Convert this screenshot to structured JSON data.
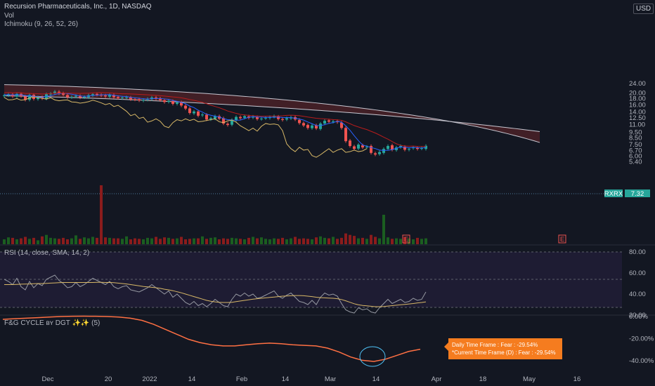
{
  "header": {
    "title": "Recursion Pharmaceuticals, Inc., 1D, NASDAQ",
    "volume_label": "Vol",
    "ichimoku_label": "Ichimoku (9, 26, 52, 26)",
    "currency": "USD"
  },
  "rsi_panel": {
    "label": "RSI (14, close, SMA, 14, 2)"
  },
  "fg_panel": {
    "label": "F&G CYCLE ʙʏ DGT ✨✨ (5)"
  },
  "tooltip": {
    "line1": "Daily Time Frame : Fear : -29.54%",
    "line2": "*Current Time Frame (D) : Fear : -29.54%"
  },
  "price_tags": {
    "symbol": "RXRX",
    "last": "7.32"
  },
  "earnings_marker": "E",
  "colors": {
    "up": "#26a69a",
    "down": "#ef5350",
    "volume_up": "#1b5e20",
    "volume_down": "#8b1c1c",
    "cloud": "#4a2127",
    "kumo_line": "#c7c7d1",
    "tenkan": "#2962ff",
    "kijun": "#b71c1c",
    "chikou": "#d8b867",
    "rsi": "#9598a1",
    "rsi_ma": "#d8b867",
    "fg_line": "#ff7043"
  },
  "chart_data": [
    {
      "type": "candlestick",
      "title": "Recursion Pharmaceuticals, Inc., 1D, NASDAQ",
      "x_ticks": [
        "Dec",
        "20",
        "2022",
        "14",
        "Feb",
        "14",
        "Mar",
        "14",
        "Apr",
        "18",
        "May",
        "16"
      ],
      "y_ticks": [
        "24.00",
        "20.00",
        "18.00",
        "16.00",
        "14.00",
        "12.50",
        "11.00",
        "9.50",
        "8.50",
        "7.50",
        "6.70",
        "6.00",
        "5.40"
      ],
      "close": [
        19.2,
        19.4,
        18.8,
        19.7,
        18.9,
        17.6,
        19.3,
        17.9,
        18.5,
        18.1,
        19.6,
        19.8,
        20.6,
        19.9,
        19.4,
        18.5,
        18.6,
        19.0,
        18.4,
        18.6,
        19.2,
        19.6,
        19.4,
        19.1,
        18.8,
        19.3,
        18.5,
        18.2,
        18.4,
        18.5,
        17.8,
        17.7,
        17.4,
        17.6,
        17.9,
        18.4,
        18.0,
        17.5,
        16.9,
        17.3,
        16.3,
        16.7,
        15.8,
        14.9,
        13.7,
        14.1,
        13.0,
        13.3,
        12.1,
        12.4,
        12.9,
        12.3,
        11.2,
        10.9,
        12.0,
        12.7,
        12.4,
        12.9,
        12.5,
        12.8,
        12.2,
        12.3,
        12.5,
        12.7,
        12.9,
        12.2,
        12.0,
        12.4,
        12.6,
        12.1,
        11.3,
        10.8,
        10.3,
        10.8,
        10.2,
        11.2,
        11.8,
        11.6,
        11.7,
        11.5,
        10.3,
        8.0,
        7.3,
        6.9,
        7.5,
        7.1,
        7.2,
        6.4,
        6.2,
        6.5,
        6.9,
        7.3,
        6.8,
        7.1,
        7.3,
        6.8,
        6.9,
        7.1,
        6.9,
        7.0,
        7.32
      ],
      "volume": [
        1.0,
        1.4,
        1.3,
        1.0,
        1.2,
        1.5,
        1.1,
        1.3,
        0.8,
        1.6,
        1.9,
        1.3,
        1.2,
        1.1,
        1.3,
        1.0,
        1.2,
        1.8,
        1.1,
        1.4,
        1.2,
        1.5,
        1.3,
        12.0,
        1.4,
        1.3,
        1.2,
        1.2,
        1.1,
        1.6,
        1.0,
        1.2,
        1.1,
        1.0,
        1.3,
        1.2,
        1.5,
        1.1,
        1.4,
        1.3,
        1.1,
        1.2,
        1.5,
        1.0,
        1.1,
        1.2,
        1.2,
        1.6,
        1.1,
        1.3,
        1.4,
        1.0,
        1.2,
        1.1,
        1.3,
        1.2,
        1.1,
        1.0,
        1.3,
        1.5,
        1.2,
        1.4,
        1.1,
        1.0,
        1.2,
        1.1,
        1.3,
        1.0,
        1.2,
        1.5,
        1.1,
        1.2,
        1.1,
        1.0,
        1.4,
        1.6,
        1.3,
        1.2,
        1.5,
        1.1,
        1.3,
        2.2,
        1.9,
        1.7,
        1.2,
        1.3,
        1.1,
        1.9,
        1.5,
        1.2,
        6.0,
        1.4,
        1.1,
        1.2,
        1.1,
        1.5,
        1.2,
        1.0,
        1.3,
        1.1,
        1.2
      ],
      "last_price": 7.32
    },
    {
      "type": "line",
      "title": "RSI (14, close, SMA, 14, 2)",
      "y_ticks": [
        "80.00",
        "60.00",
        "40.00",
        "20.00"
      ],
      "series": [
        {
          "values": [
            54,
            52,
            49,
            55,
            47,
            44,
            52,
            46,
            50,
            48,
            54,
            56,
            58,
            53,
            50,
            46,
            47,
            51,
            47,
            49,
            52,
            55,
            53,
            51,
            49,
            52,
            47,
            45,
            47,
            48,
            44,
            43,
            42,
            44,
            46,
            49,
            46,
            43,
            40,
            43,
            37,
            40,
            36,
            32,
            30,
            33,
            29,
            31,
            28,
            31,
            35,
            32,
            29,
            28,
            35,
            40,
            38,
            41,
            38,
            40,
            36,
            37,
            39,
            41,
            43,
            38,
            36,
            39,
            41,
            37,
            33,
            32,
            30,
            34,
            30,
            37,
            41,
            39,
            40,
            38,
            31,
            25,
            23,
            22,
            27,
            25,
            26,
            23,
            22,
            27,
            31,
            35,
            31,
            33,
            35,
            32,
            33,
            36,
            34,
            35,
            42
          ]
        },
        {
          "values": [
            49,
            49,
            49,
            49.2,
            49.4,
            49.5,
            49.6,
            49.8,
            50,
            50,
            50.2,
            50.4,
            50.6,
            50.8,
            51,
            51,
            51,
            51,
            51,
            51,
            51,
            51,
            51.2,
            51.2,
            51,
            51,
            50.8,
            50.4,
            50,
            49.6,
            49,
            48.4,
            47.8,
            47.2,
            46.8,
            46.4,
            46,
            45.4,
            44.6,
            44,
            43.2,
            42.2,
            41.2,
            40,
            38.8,
            37.6,
            36.4,
            35.2,
            34,
            33.2,
            32.6,
            32.2,
            32,
            32,
            32.2,
            32.8,
            33.4,
            34,
            34.6,
            35.2,
            35.6,
            36,
            36.4,
            36.8,
            37.2,
            37.6,
            38,
            38.2,
            38.4,
            38.6,
            38.6,
            38.4,
            38,
            37.6,
            37,
            36.6,
            36.4,
            36.2,
            36,
            35.6,
            34.8,
            33.6,
            32.2,
            30.8,
            29.8,
            29.2,
            28.8,
            28.4,
            28,
            28,
            28.2,
            28.6,
            29,
            29.4,
            29.8,
            30.2,
            30.6,
            31,
            31.6,
            32,
            32.6
          ]
        }
      ],
      "ylim": [
        20,
        85
      ]
    },
    {
      "type": "line",
      "title": "F&G CYCLE ʙʏ DGT ✨✨ (5)",
      "y_ticks": [
        "0.00%",
        "-20.00%",
        "-40.00%"
      ],
      "values_percent": [
        -2.5,
        -2.0,
        -1.5,
        -1.0,
        -0.5,
        0.0,
        0.2,
        0.3,
        0.2,
        0.0,
        -0.5,
        -1.5,
        -3.5,
        -7.0,
        -11.5,
        -16.0,
        -20.5,
        -23.5,
        -25.5,
        -26.5,
        -26.5,
        -25.5,
        -24.5,
        -24.0,
        -24.5,
        -25.5,
        -26.0,
        -26.5,
        -28.5,
        -32.0,
        -36.5,
        -39.5,
        -40.5,
        -38.5,
        -35.0,
        -31.5,
        -29.54
      ],
      "ylim": [
        -48,
        3
      ],
      "tooltip": "Daily Time Frame : Fear : -29.54%"
    }
  ]
}
